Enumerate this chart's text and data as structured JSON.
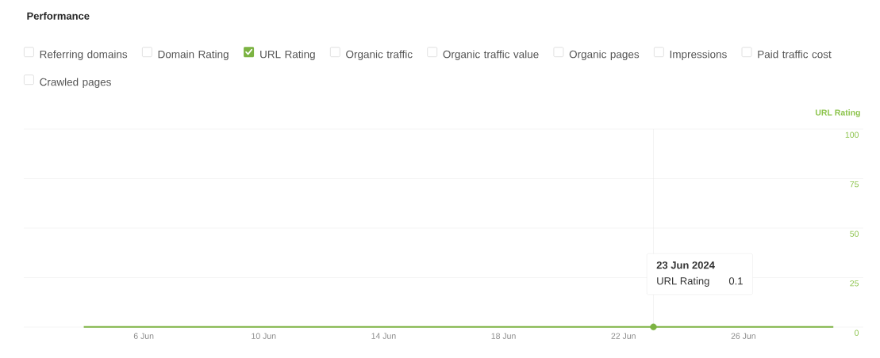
{
  "chart_data": {
    "type": "line",
    "title": "Performance",
    "ylabel": "URL Rating",
    "x": [
      "2024-06-04",
      "2024-06-05",
      "2024-06-06",
      "2024-06-07",
      "2024-06-08",
      "2024-06-09",
      "2024-06-10",
      "2024-06-11",
      "2024-06-12",
      "2024-06-13",
      "2024-06-14",
      "2024-06-15",
      "2024-06-16",
      "2024-06-17",
      "2024-06-18",
      "2024-06-19",
      "2024-06-20",
      "2024-06-21",
      "2024-06-22",
      "2024-06-23",
      "2024-06-24",
      "2024-06-25",
      "2024-06-26",
      "2024-06-27",
      "2024-06-28",
      "2024-06-29"
    ],
    "series": [
      {
        "name": "URL Rating",
        "color": "#7cb342",
        "marker": "none",
        "values": [
          0.1,
          0.1,
          0.1,
          0.1,
          0.1,
          0.1,
          0.1,
          0.1,
          0.1,
          0.1,
          0.1,
          0.1,
          0.1,
          0.1,
          0.1,
          0.1,
          0.1,
          0.1,
          0.1,
          0.1,
          0.1,
          0.1,
          0.1,
          0.1,
          0.1,
          0.1
        ]
      },
      {
        "type": "scatter",
        "color": "#7cb342",
        "marker": "circle",
        "x": [
          "2024-06-23"
        ],
        "values": [
          0.1
        ]
      }
    ],
    "xlim": [
      "2024-06-02",
      "2024-06-30"
    ],
    "xticks": [
      {
        "value": "2024-06-06",
        "label": "6 Jun"
      },
      {
        "value": "2024-06-10",
        "label": "10 Jun"
      },
      {
        "value": "2024-06-14",
        "label": "14 Jun"
      },
      {
        "value": "2024-06-18",
        "label": "18 Jun"
      },
      {
        "value": "2024-06-22",
        "label": "22 Jun"
      },
      {
        "value": "2024-06-26",
        "label": "26 Jun"
      }
    ],
    "ylim": [
      0,
      100
    ],
    "yticks": [
      0,
      25,
      50,
      75,
      100
    ],
    "grid": "y",
    "legend": "top",
    "line_style": "solid",
    "ref_lines": [
      {
        "axis": "x",
        "value": "2024-06-23",
        "color": "#e0e0e0"
      }
    ],
    "annotations": [
      "Referring domains",
      "Domain Rating",
      "Organic traffic",
      "Organic traffic value",
      "Organic pages",
      "Impressions",
      "Paid traffic cost",
      "Crawled pages",
      "23 Jun 2024",
      "URL Rating",
      "0.1"
    ]
  }
}
